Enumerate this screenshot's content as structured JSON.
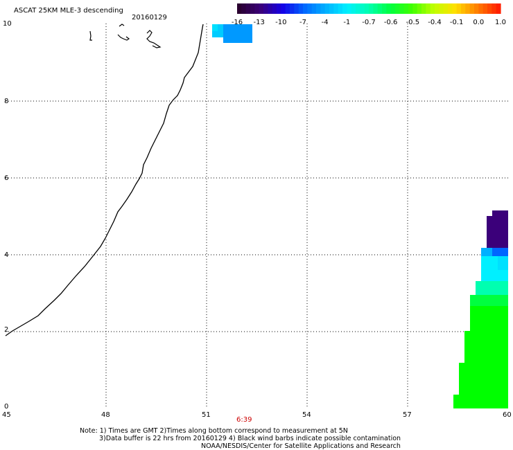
{
  "title": "ASCAT 25KM MLE-3 descending",
  "date": "20160129",
  "colorbar": {
    "ticks": [
      "-16",
      "-13",
      "-10",
      "-7",
      "-4",
      "-1",
      "-0.7",
      "-0.6",
      "-0.5",
      "-0.4",
      "-0.1",
      "0.0",
      "1.0"
    ],
    "colors": [
      "#2a0030",
      "#3b007a",
      "#1400e6",
      "#0066ff",
      "#00b0ff",
      "#00f0ff",
      "#00ffb0",
      "#00ff40",
      "#40ff00",
      "#c0ff00",
      "#ffe000",
      "#ff8000",
      "#ff2000"
    ]
  },
  "axes": {
    "x_ticks": [
      "45",
      "48",
      "51",
      "54",
      "57",
      "60"
    ],
    "y_ticks": [
      "0",
      "2",
      "4",
      "6",
      "8",
      "10"
    ],
    "xlim": [
      45,
      60
    ],
    "ylim": [
      0,
      10
    ],
    "grid": true
  },
  "time_label": "6:39",
  "notes": [
    "Note: 1) Times are GMT 2)Times along bottom correspond to measurement at 5N",
    "3)Data buffer is 22 hrs from 20160129 4) Black wind barbs indicate possible contamination",
    "NOAA/NESDIS/Center for Satellite Applications and Research"
  ],
  "colors": {
    "time_label": "#cc0000",
    "coastline": "#000000",
    "grid": "#000000"
  }
}
